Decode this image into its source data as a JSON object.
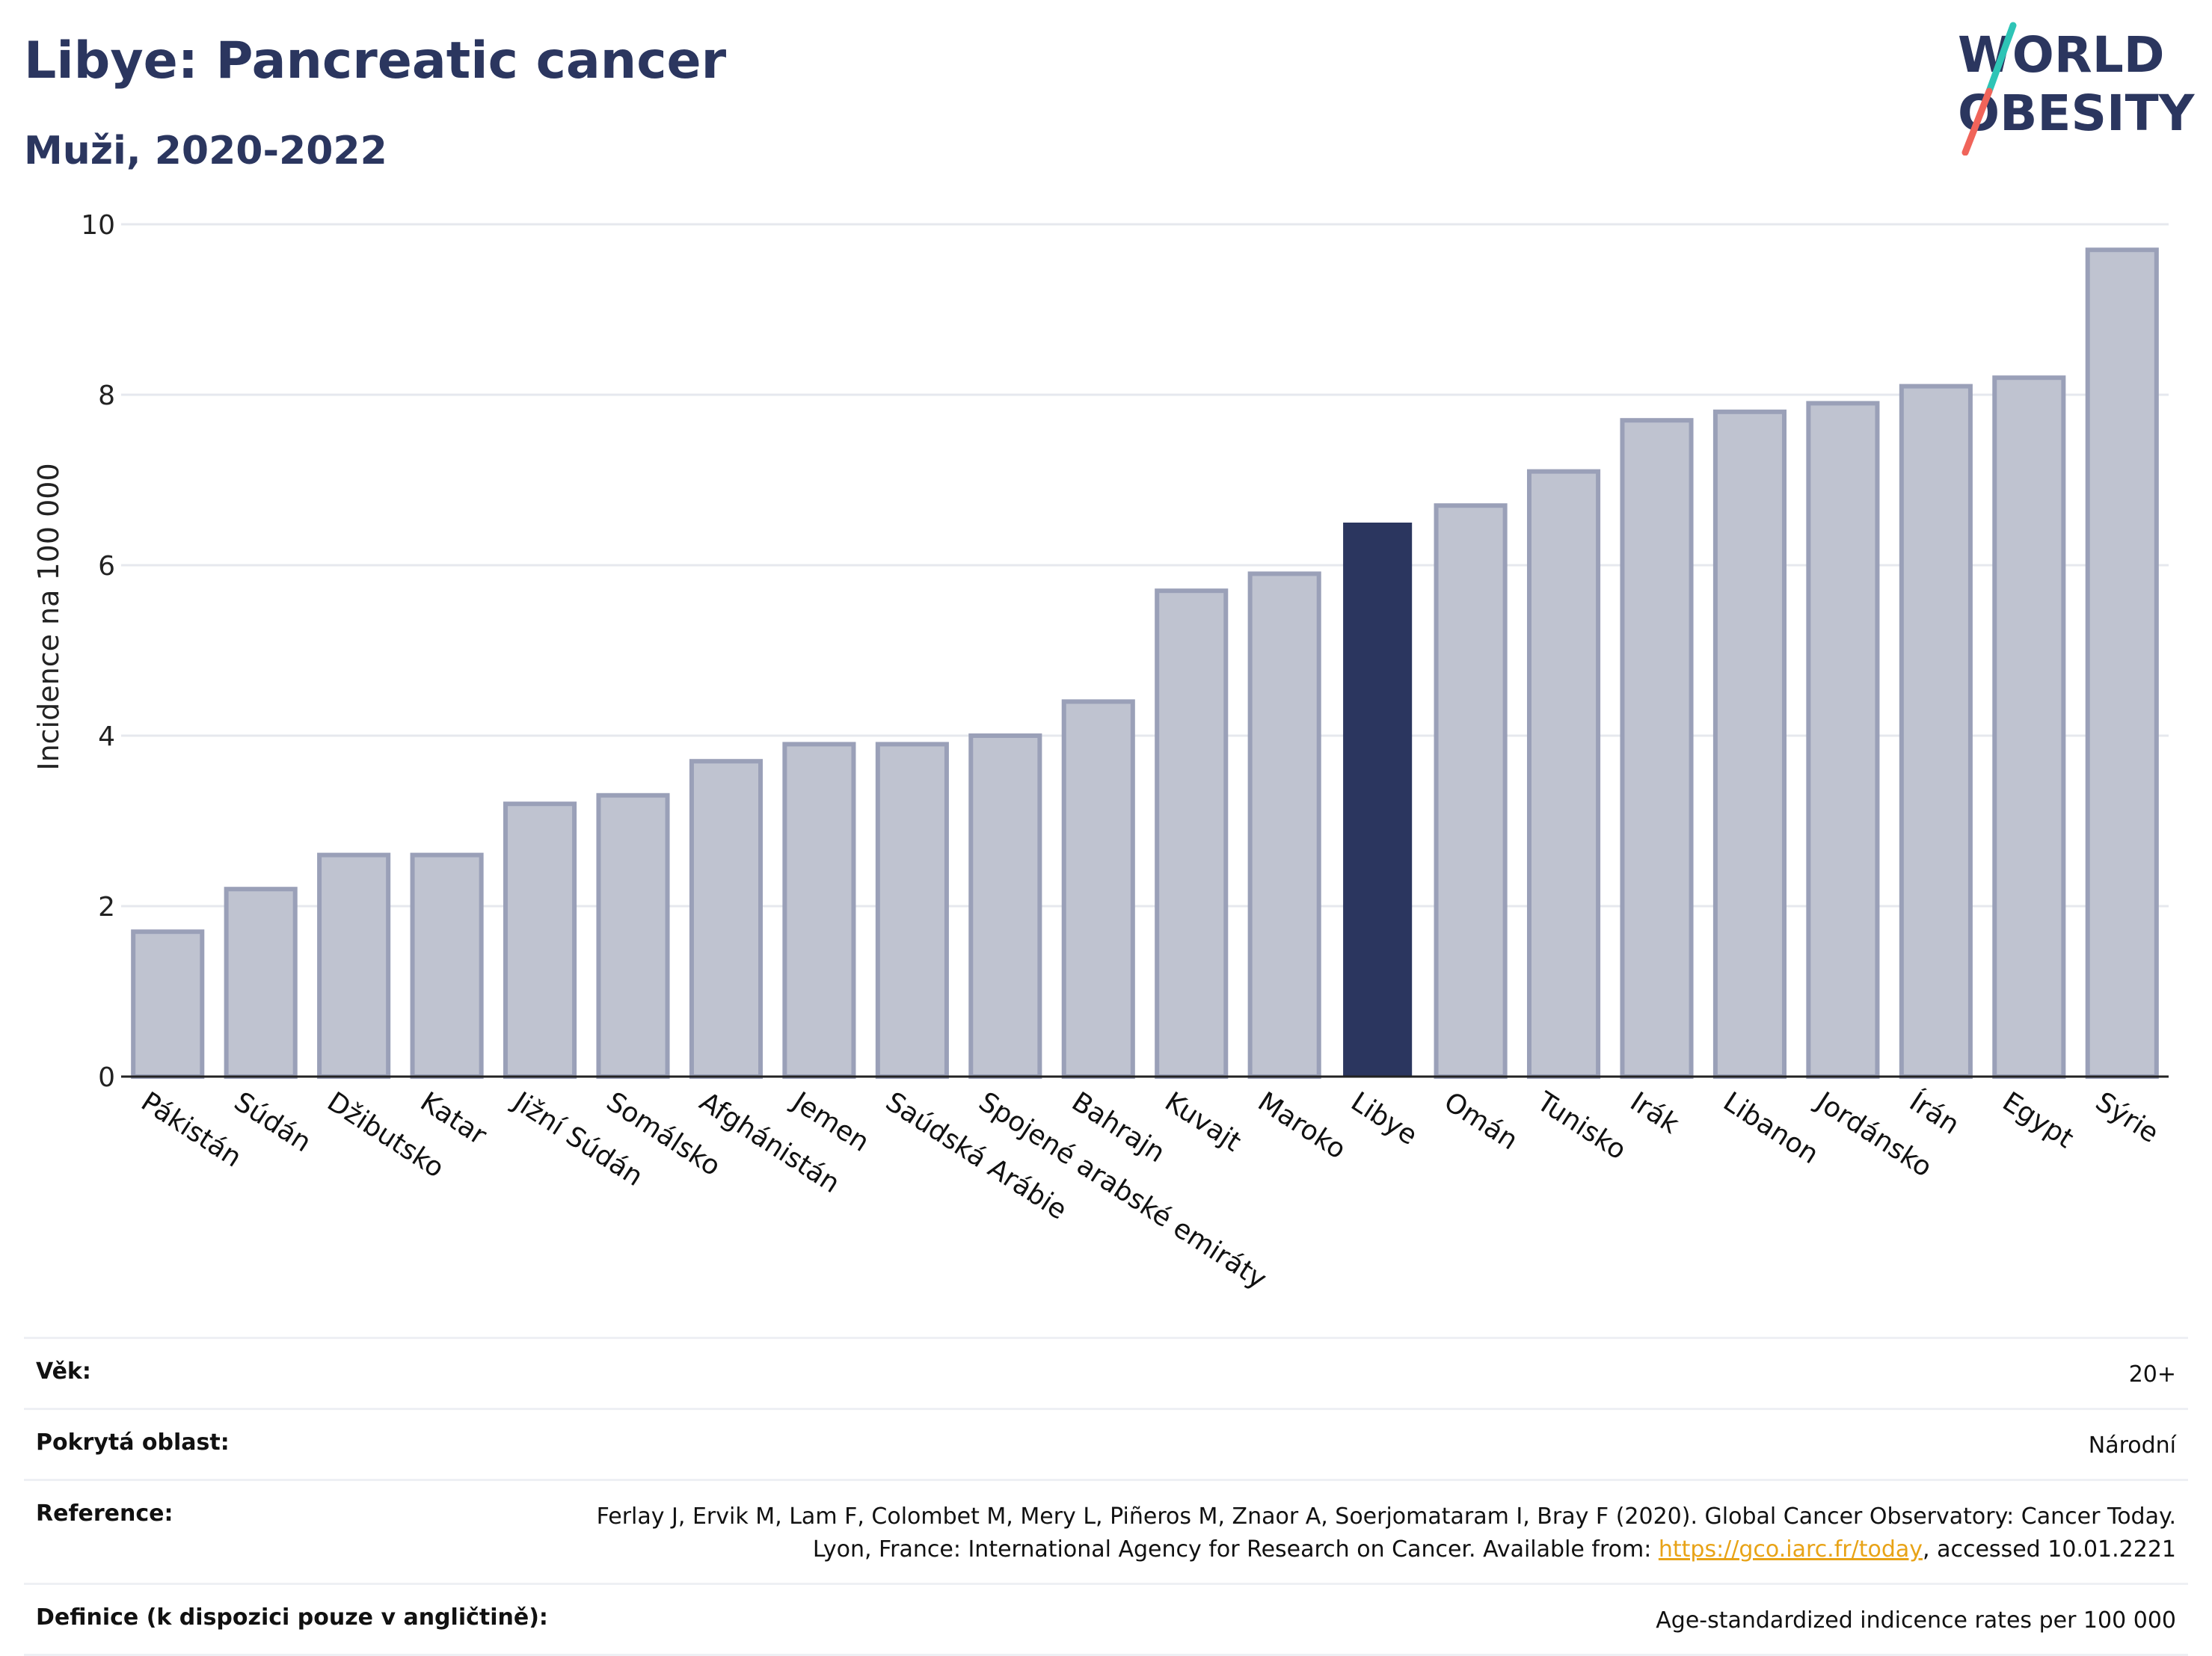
{
  "header": {
    "title": "Libye: Pancreatic cancer",
    "subtitle": "Muži, 2020-2022"
  },
  "logo": {
    "line1": "WORLD",
    "line2": "OBESITY",
    "accent_colors": [
      "#2ec4b6",
      "#f0645a"
    ]
  },
  "chart_data": {
    "type": "bar",
    "ylabel": "Incidence na 100 000",
    "xlabel": "",
    "ylim": [
      0,
      10
    ],
    "yticks": [
      0,
      2,
      4,
      6,
      8,
      10
    ],
    "grid": true,
    "highlight": "Libye",
    "colors": {
      "bar": "#bfc3d0",
      "bar_edge": "#9aa0b8",
      "highlight": "#2b365f"
    },
    "categories": [
      "Pákistán",
      "Súdán",
      "Džibutsko",
      "Katar",
      "Jižní Súdán",
      "Somálsko",
      "Afghánistán",
      "Jemen",
      "Saúdská Arábie",
      "Spojené arabské emiráty",
      "Bahrajn",
      "Kuvajt",
      "Maroko",
      "Libye",
      "Omán",
      "Tunisko",
      "Irák",
      "Libanon",
      "Jordánsko",
      "Írán",
      "Egypt",
      "Sýrie"
    ],
    "values": [
      1.7,
      2.2,
      2.6,
      2.6,
      3.2,
      3.3,
      3.7,
      3.9,
      3.9,
      4.0,
      4.4,
      5.7,
      5.9,
      6.5,
      6.7,
      7.1,
      7.7,
      7.8,
      7.9,
      8.1,
      8.2,
      9.7
    ]
  },
  "info": {
    "rows": [
      {
        "label": "Věk:",
        "value": "20+"
      },
      {
        "label": "Pokrytá oblast:",
        "value": "Národní"
      },
      {
        "label": "Reference:",
        "value_prefix": "Ferlay J, Ervik M, Lam F, Colombet M, Mery L, Piñeros M, Znaor A, Soerjomataram I, Bray F (2020). Global Cancer Observatory: Cancer Today. Lyon, France: International Agency for Research on Cancer. Available from: ",
        "link": "https://gco.iarc.fr/today",
        "value_suffix": ", accessed 10.01.2221"
      },
      {
        "label": "Definice (k dispozici pouze v angličtině):",
        "value": "Age-standardized indicence rates per 100 000"
      }
    ]
  }
}
